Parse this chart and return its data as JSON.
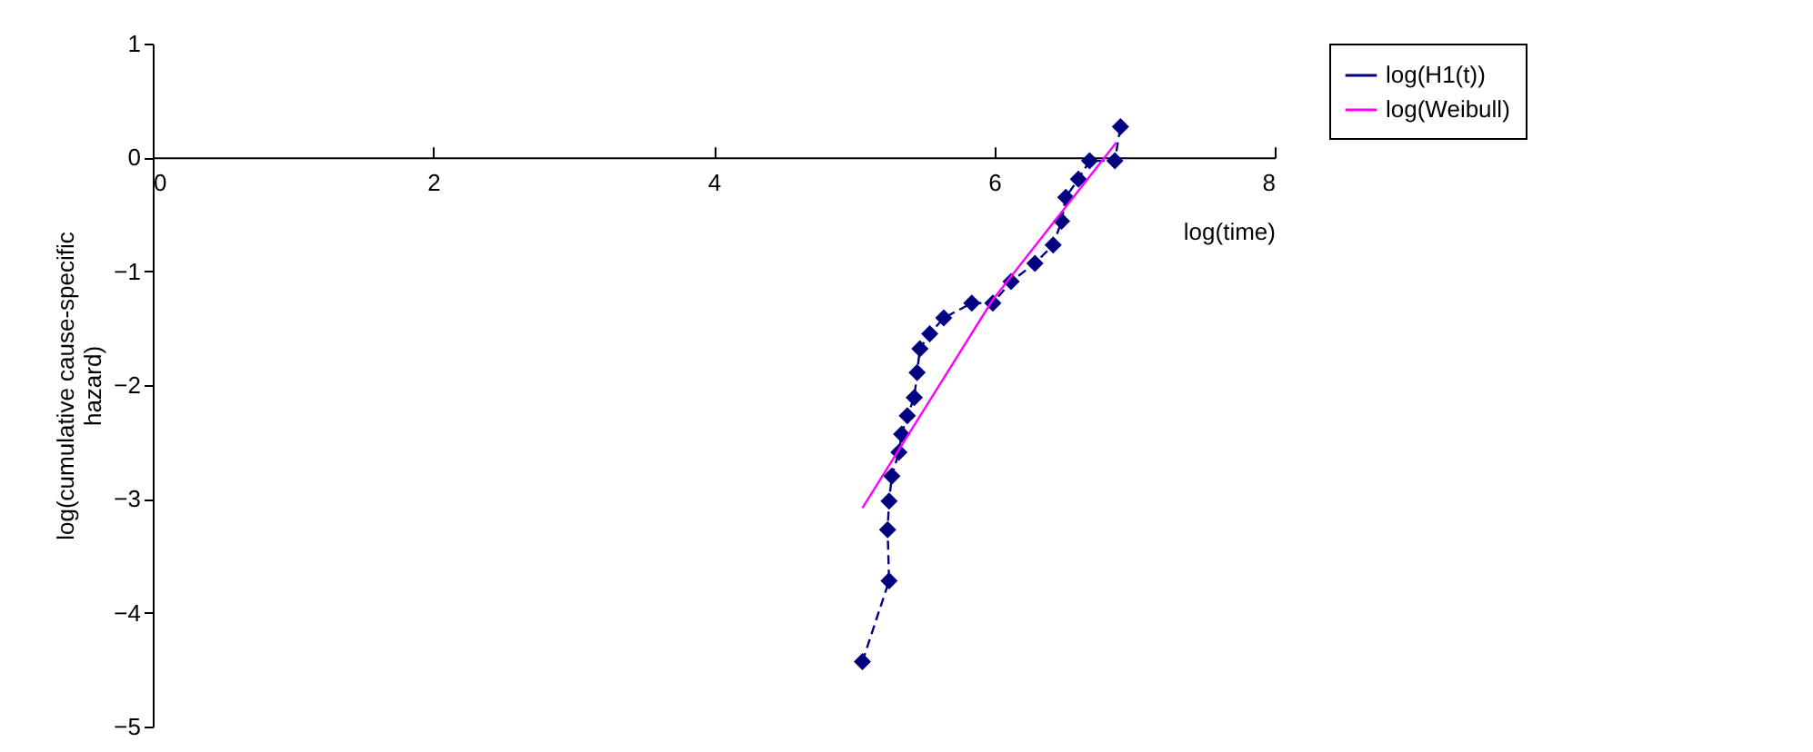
{
  "chart_data": {
    "type": "line",
    "xlabel": "log(time)",
    "ylabel": "log(cumulative cause-specific hazard)",
    "xlim": [
      0,
      8
    ],
    "xticks": [
      0,
      2,
      4,
      6,
      8
    ],
    "ylim": [
      -5,
      1
    ],
    "yticks": [
      -5,
      -4,
      -3,
      -2,
      -1,
      0,
      1
    ],
    "grid": false,
    "legend": "right",
    "series": [
      {
        "name": "log(H1(t))",
        "color": "#000080",
        "marker": "diamond",
        "line_style": "dashed",
        "x": [
          5.06,
          5.25,
          5.24,
          5.25,
          5.27,
          5.32,
          5.34,
          5.38,
          5.43,
          5.45,
          5.47,
          5.54,
          5.64,
          5.84,
          5.99,
          6.12,
          6.29,
          6.42,
          6.48,
          6.51,
          6.6,
          6.68,
          6.86,
          6.9
        ],
        "values": [
          -4.43,
          -3.72,
          -3.27,
          -3.02,
          -2.8,
          -2.59,
          -2.43,
          -2.27,
          -2.11,
          -1.89,
          -1.68,
          -1.55,
          -1.41,
          -1.28,
          -1.28,
          -1.09,
          -0.93,
          -0.77,
          -0.56,
          -0.35,
          -0.19,
          -0.03,
          -0.03,
          0.27
        ]
      },
      {
        "name": "log(Weibull)",
        "color": "#ff00ff",
        "marker": "none",
        "line_style": "solid",
        "x": [
          5.06,
          5.99,
          6.87
        ],
        "values": [
          -3.08,
          -1.25,
          0.13
        ]
      }
    ]
  }
}
